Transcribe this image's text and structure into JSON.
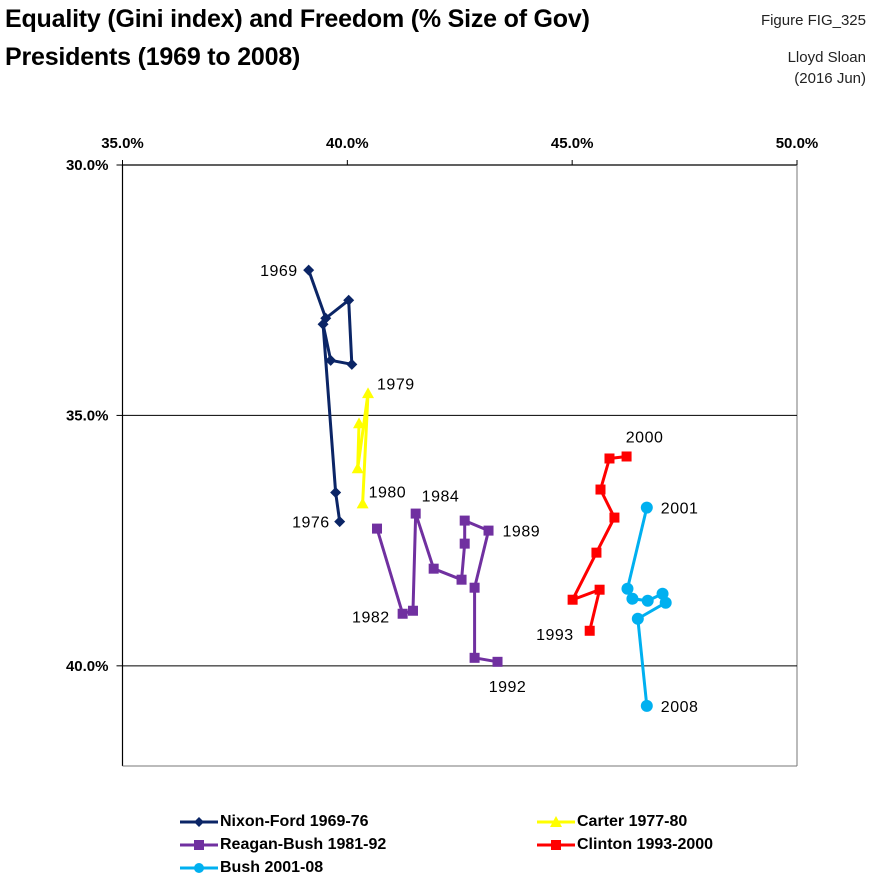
{
  "header": {
    "title_line1": "Equality (Gini index) and Freedom (% Size of Gov)",
    "title_line2": "Presidents (1969 to 2008)",
    "figure_id": "Figure FIG_325",
    "author": "Lloyd Sloan",
    "date": "(2016 Jun)"
  },
  "chart_data": {
    "type": "line",
    "title": "Equality (Gini index) and Freedom (% Size of Gov) Presidents (1969 to 2008)",
    "xlabel": "",
    "ylabel": "",
    "x_axis_position": "top",
    "y_axis_inverted": true,
    "xlim": [
      35.0,
      50.0
    ],
    "ylim": [
      30.0,
      42.0
    ],
    "x_ticks": [
      35.0,
      40.0,
      45.0,
      50.0
    ],
    "x_tick_labels": [
      "35.0%",
      "40.0%",
      "45.0%",
      "50.0%"
    ],
    "y_ticks": [
      30.0,
      35.0,
      40.0
    ],
    "y_tick_labels": [
      "30.0%",
      "35.0%",
      "40.0%"
    ],
    "grid": "horizontal",
    "legend_position": "bottom",
    "series": [
      {
        "name": "Nixon-Ford 1969-76",
        "color": "#0b2566",
        "marker": "diamond",
        "years": [
          1969,
          1970,
          1971,
          1972,
          1973,
          1974,
          1975,
          1976
        ],
        "x": [
          39.14,
          39.52,
          40.03,
          40.1,
          39.63,
          39.46,
          39.74,
          39.83
        ],
        "y": [
          32.1,
          33.06,
          32.7,
          33.98,
          33.9,
          33.18,
          36.54,
          37.12
        ]
      },
      {
        "name": "Carter 1977-80",
        "color": "#ffff00",
        "marker": "triangle",
        "years": [
          1977,
          1978,
          1979,
          1980
        ],
        "x": [
          40.26,
          40.23,
          40.46,
          40.34
        ],
        "y": [
          35.16,
          36.06,
          34.56,
          36.76
        ]
      },
      {
        "name": "Reagan-Bush 1981-92",
        "color": "#7030a0",
        "marker": "square",
        "years": [
          1981,
          1982,
          1983,
          1984,
          1985,
          1986,
          1987,
          1988,
          1989,
          1990,
          1991,
          1992
        ],
        "x": [
          40.66,
          41.23,
          41.46,
          41.52,
          41.92,
          42.54,
          42.61,
          42.61,
          43.14,
          42.83,
          42.83,
          43.34
        ],
        "y": [
          37.26,
          38.96,
          38.9,
          36.96,
          38.06,
          38.28,
          37.56,
          37.1,
          37.3,
          38.44,
          39.84,
          39.92
        ]
      },
      {
        "name": "Clinton 1993-2000",
        "color": "#ff0000",
        "marker": "square",
        "years": [
          1993,
          1994,
          1995,
          1996,
          1997,
          1998,
          1999,
          2000
        ],
        "x": [
          45.39,
          45.61,
          45.01,
          45.54,
          45.94,
          45.63,
          45.83,
          46.21
        ],
        "y": [
          39.3,
          38.48,
          38.68,
          37.74,
          37.04,
          36.48,
          35.86,
          35.82
        ]
      },
      {
        "name": "Bush 2001-08",
        "color": "#00b0f0",
        "marker": "circle",
        "years": [
          2001,
          2002,
          2003,
          2004,
          2005,
          2006,
          2007,
          2008
        ],
        "x": [
          46.66,
          46.23,
          46.34,
          46.68,
          47.01,
          47.08,
          46.46,
          46.66
        ],
        "y": [
          36.84,
          38.46,
          38.66,
          38.7,
          38.56,
          38.74,
          39.06,
          40.8
        ]
      }
    ],
    "annotations": [
      {
        "text": "1969",
        "series": 0,
        "year": 1969,
        "anchor": "left"
      },
      {
        "text": "1976",
        "series": 0,
        "year": 1976,
        "anchor": "left"
      },
      {
        "text": "1979",
        "series": 1,
        "year": 1979,
        "anchor": "right"
      },
      {
        "text": "1980",
        "series": 1,
        "year": 1980,
        "anchor": "right"
      },
      {
        "text": "1984",
        "series": 2,
        "year": 1984,
        "anchor": "above-right"
      },
      {
        "text": "1982",
        "series": 2,
        "year": 1982,
        "anchor": "left"
      },
      {
        "text": "1989",
        "series": 2,
        "year": 1989,
        "anchor": "right"
      },
      {
        "text": "1992",
        "series": 2,
        "year": 1992,
        "anchor": "below"
      },
      {
        "text": "2000",
        "series": 3,
        "year": 2000,
        "anchor": "above"
      },
      {
        "text": "1993",
        "series": 3,
        "year": 1993,
        "anchor": "left"
      },
      {
        "text": "2001",
        "series": 4,
        "year": 2001,
        "anchor": "right"
      },
      {
        "text": "2008",
        "series": 4,
        "year": 2008,
        "anchor": "right"
      }
    ]
  }
}
